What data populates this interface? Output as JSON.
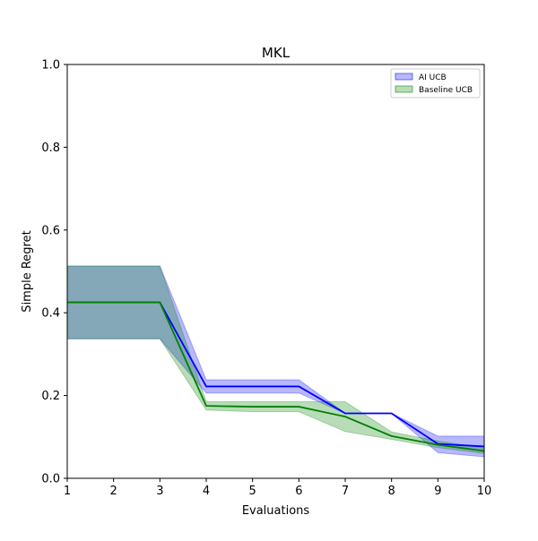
{
  "chart_data": {
    "type": "line",
    "title": "MKL",
    "xlabel": "Evaluations",
    "ylabel": "Simple Regret",
    "xlim": [
      1,
      10
    ],
    "ylim": [
      0.0,
      1.0
    ],
    "x": [
      1,
      2,
      3,
      4,
      5,
      6,
      7,
      8,
      9,
      10
    ],
    "x_ticks": [
      "1",
      "2",
      "3",
      "4",
      "5",
      "6",
      "7",
      "8",
      "9",
      "10"
    ],
    "y_ticks": [
      {
        "value": 0.0,
        "label": "0.0"
      },
      {
        "value": 0.2,
        "label": "0.2"
      },
      {
        "value": 0.4,
        "label": "0.4"
      },
      {
        "value": 0.6,
        "label": "0.6"
      },
      {
        "value": 0.8,
        "label": "0.8"
      },
      {
        "value": 1.0,
        "label": "1.0"
      }
    ],
    "grid": false,
    "legend_position": "top-right",
    "series": [
      {
        "name": "AI UCB",
        "line_color": "#0000ff",
        "band_color": "#0000ff",
        "band_opacity": 0.28,
        "values": [
          0.425,
          0.425,
          0.425,
          0.222,
          0.222,
          0.222,
          0.157,
          0.157,
          0.083,
          0.077
        ],
        "lower": [
          0.337,
          0.337,
          0.337,
          0.206,
          0.206,
          0.206,
          0.157,
          0.157,
          0.062,
          0.052
        ],
        "upper": [
          0.513,
          0.513,
          0.513,
          0.238,
          0.238,
          0.238,
          0.157,
          0.157,
          0.102,
          0.102
        ]
      },
      {
        "name": "Baseline UCB",
        "line_color": "#008000",
        "band_color": "#008000",
        "band_opacity": 0.28,
        "values": [
          0.425,
          0.425,
          0.425,
          0.175,
          0.173,
          0.173,
          0.149,
          0.102,
          0.081,
          0.066
        ],
        "lower": [
          0.337,
          0.337,
          0.337,
          0.165,
          0.161,
          0.161,
          0.113,
          0.094,
          0.074,
          0.06
        ],
        "upper": [
          0.513,
          0.513,
          0.513,
          0.185,
          0.185,
          0.185,
          0.185,
          0.112,
          0.09,
          0.073
        ]
      }
    ]
  }
}
